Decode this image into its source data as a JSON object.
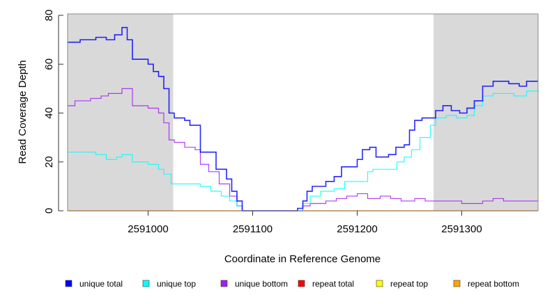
{
  "chart_data": {
    "type": "line",
    "step": true,
    "xlabel": "Coordinate in Reference Genome",
    "ylabel": "Read Coverage Depth",
    "xlim": [
      2590923,
      2591373
    ],
    "ylim": [
      0,
      80
    ],
    "xticks": [
      2591000,
      2591100,
      2591200,
      2591300
    ],
    "xtick_labels": [
      "2591000",
      "2591100",
      "2591200",
      "2591300"
    ],
    "yticks": [
      0,
      20,
      40,
      60,
      80
    ],
    "ytick_labels": [
      "0",
      "20",
      "40",
      "60",
      "80"
    ],
    "shaded_regions": [
      [
        2590923,
        2591024
      ],
      [
        2591273,
        2591373
      ]
    ],
    "shade_color": "#d9d9d9",
    "legend_position": "bottom",
    "series": [
      {
        "name": "unique total",
        "color": "#0000ff",
        "x": [
          2590923,
          2590935,
          2590950,
          2590960,
          2590968,
          2590975,
          2590980,
          2590985,
          2591000,
          2591005,
          2591010,
          2591015,
          2591020,
          2591025,
          2591035,
          2591040,
          2591050,
          2591065,
          2591075,
          2591080,
          2591085,
          2591090,
          2591143,
          2591148,
          2591152,
          2591157,
          2591170,
          2591178,
          2591185,
          2591200,
          2591205,
          2591212,
          2591218,
          2591230,
          2591237,
          2591245,
          2591250,
          2591255,
          2591262,
          2591275,
          2591282,
          2591290,
          2591298,
          2591305,
          2591312,
          2591320,
          2591330,
          2591345,
          2591355,
          2591362,
          2591373
        ],
        "y": [
          69,
          70,
          71,
          70,
          72,
          75,
          70,
          62,
          60,
          57,
          55,
          50,
          40,
          38,
          37,
          35,
          24,
          17,
          13,
          8,
          4,
          0,
          1,
          4,
          8,
          10,
          12,
          14,
          18,
          21,
          25,
          26,
          22,
          23,
          26,
          27,
          33,
          37,
          38,
          41,
          43,
          41,
          40,
          42,
          45,
          51,
          53,
          52,
          51,
          53,
          53
        ]
      },
      {
        "name": "unique top",
        "color": "#00ffff",
        "x": [
          2590923,
          2590950,
          2590960,
          2590970,
          2590975,
          2590985,
          2591000,
          2591010,
          2591015,
          2591022,
          2591050,
          2591060,
          2591070,
          2591078,
          2591085,
          2591090,
          2591148,
          2591155,
          2591165,
          2591178,
          2591188,
          2591210,
          2591215,
          2591238,
          2591245,
          2591252,
          2591260,
          2591270,
          2591275,
          2591285,
          2591295,
          2591305,
          2591312,
          2591320,
          2591330,
          2591350,
          2591362,
          2591373
        ],
        "y": [
          24,
          23,
          21,
          22,
          23,
          20,
          19,
          17,
          15,
          11,
          10,
          8,
          6,
          4,
          2,
          0,
          3,
          6,
          8,
          9,
          12,
          16,
          17,
          20,
          22,
          25,
          30,
          35,
          38,
          39,
          38,
          39,
          43,
          47,
          48,
          47,
          49,
          49
        ]
      },
      {
        "name": "unique bottom",
        "color": "#a020f0",
        "x": [
          2590923,
          2590930,
          2590945,
          2590955,
          2590962,
          2590975,
          2590985,
          2591000,
          2591010,
          2591015,
          2591020,
          2591025,
          2591035,
          2591045,
          2591050,
          2591058,
          2591068,
          2591078,
          2591085,
          2591090,
          2591148,
          2591155,
          2591170,
          2591180,
          2591190,
          2591200,
          2591210,
          2591222,
          2591232,
          2591242,
          2591255,
          2591265,
          2591300,
          2591320,
          2591330,
          2591340,
          2591373
        ],
        "y": [
          43,
          45,
          46,
          47,
          48,
          50,
          43,
          42,
          40,
          36,
          29,
          28,
          26,
          25,
          19,
          16,
          11,
          6,
          2,
          0,
          2,
          3,
          4,
          5,
          6,
          7,
          5,
          6,
          5,
          4,
          5,
          4,
          3,
          4,
          5,
          4,
          4
        ]
      },
      {
        "name": "repeat total",
        "color": "#ff0000",
        "x": [
          2590923,
          2591373
        ],
        "y": [
          0,
          0
        ]
      },
      {
        "name": "repeat top",
        "color": "#ffff00",
        "x": [
          2590923,
          2591373
        ],
        "y": [
          0,
          0
        ]
      },
      {
        "name": "repeat bottom",
        "color": "#ffa500",
        "x": [
          2590923,
          2591373
        ],
        "y": [
          0,
          0
        ]
      }
    ]
  }
}
